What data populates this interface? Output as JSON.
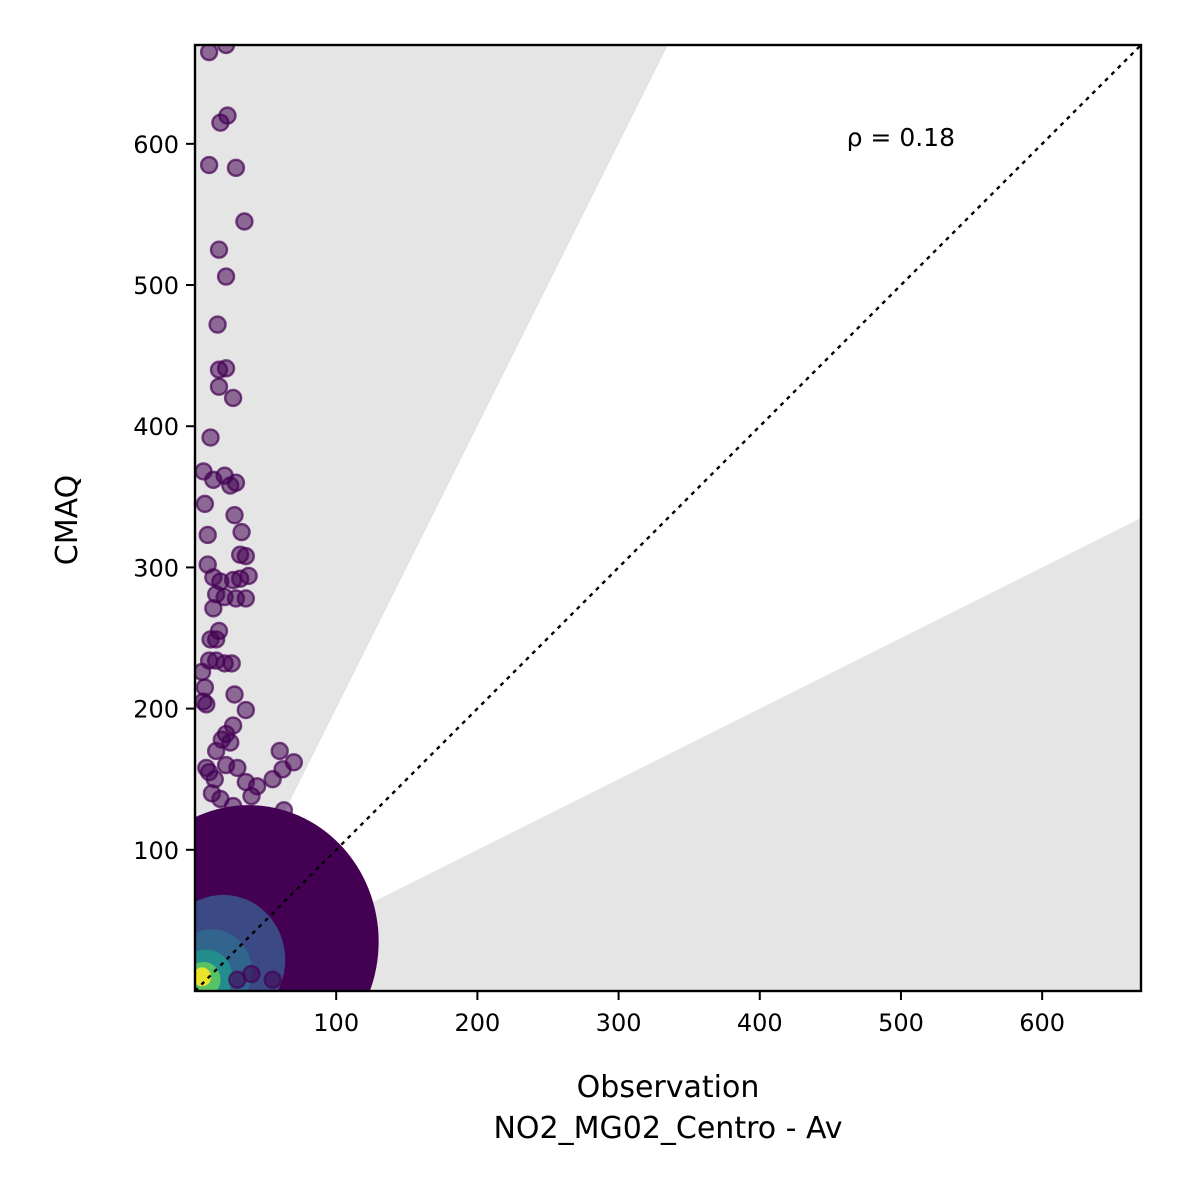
{
  "chart_data": {
    "type": "scatter",
    "title": "",
    "xlabel": "Observation",
    "xlabel_sub": "NO2_MG02_Centro - Av",
    "ylabel": "CMAQ",
    "xlim": [
      0,
      670
    ],
    "ylim": [
      0,
      670
    ],
    "xticks": [
      100,
      200,
      300,
      400,
      500,
      600
    ],
    "yticks": [
      100,
      200,
      300,
      400,
      500,
      600
    ],
    "grid": false,
    "annotation": {
      "text": "ρ = 0.18",
      "x": 470,
      "y": 600
    },
    "reference_line": {
      "style": "dotted",
      "slope": 1,
      "color": "#000000"
    },
    "shaded_bands": [
      {
        "from_slope": 2,
        "to_slope": 1000,
        "color": "#e5e5e5"
      },
      {
        "from_slope": 0,
        "to_slope": 0.5,
        "color": "#e5e5e5"
      }
    ],
    "colormap": "viridis",
    "colors": {
      "low_density": "#440154",
      "mid_density": "#31688e",
      "high_density": "#fde725",
      "band": "#e5e5e5"
    },
    "points": [
      [
        10,
        665
      ],
      [
        22,
        670
      ],
      [
        18,
        615
      ],
      [
        23,
        620
      ],
      [
        10,
        585
      ],
      [
        29,
        583
      ],
      [
        35,
        545
      ],
      [
        17,
        525
      ],
      [
        22,
        506
      ],
      [
        16,
        472
      ],
      [
        17,
        440
      ],
      [
        22,
        441
      ],
      [
        17,
        428
      ],
      [
        27,
        420
      ],
      [
        11,
        392
      ],
      [
        6,
        368
      ],
      [
        13,
        362
      ],
      [
        21,
        365
      ],
      [
        25,
        358
      ],
      [
        29,
        360
      ],
      [
        7,
        345
      ],
      [
        28,
        337
      ],
      [
        33,
        325
      ],
      [
        9,
        323
      ],
      [
        32,
        309
      ],
      [
        36,
        308
      ],
      [
        9,
        302
      ],
      [
        13,
        293
      ],
      [
        18,
        290
      ],
      [
        27,
        291
      ],
      [
        32,
        292
      ],
      [
        38,
        294
      ],
      [
        15,
        281
      ],
      [
        21,
        279
      ],
      [
        29,
        278
      ],
      [
        36,
        278
      ],
      [
        13,
        271
      ],
      [
        17,
        255
      ],
      [
        11,
        249
      ],
      [
        15,
        249
      ],
      [
        10,
        234
      ],
      [
        15,
        234
      ],
      [
        21,
        232
      ],
      [
        26,
        232
      ],
      [
        5,
        226
      ],
      [
        7,
        215
      ],
      [
        28,
        210
      ],
      [
        6,
        205
      ],
      [
        8,
        203
      ],
      [
        36,
        199
      ],
      [
        27,
        188
      ],
      [
        22,
        182
      ],
      [
        19,
        178
      ],
      [
        25,
        176
      ],
      [
        15,
        170
      ],
      [
        60,
        170
      ],
      [
        70,
        162
      ],
      [
        62,
        157
      ],
      [
        55,
        150
      ],
      [
        8,
        158
      ],
      [
        10,
        155
      ],
      [
        14,
        150
      ],
      [
        22,
        160
      ],
      [
        30,
        158
      ],
      [
        36,
        148
      ],
      [
        44,
        145
      ],
      [
        40,
        138
      ],
      [
        12,
        140
      ],
      [
        18,
        136
      ],
      [
        27,
        131
      ],
      [
        63,
        128
      ],
      [
        36,
        120
      ],
      [
        48,
        118
      ],
      [
        54,
        110
      ],
      [
        44,
        108
      ],
      [
        60,
        96
      ],
      [
        67,
        86
      ],
      [
        70,
        80
      ],
      [
        72,
        70
      ],
      [
        74,
        62
      ],
      [
        74,
        50
      ],
      [
        75,
        40
      ],
      [
        76,
        30
      ],
      [
        75,
        20
      ],
      [
        74,
        12
      ],
      [
        72,
        8
      ],
      [
        40,
        12
      ],
      [
        30,
        8
      ],
      [
        55,
        8
      ],
      [
        65,
        95
      ]
    ]
  }
}
